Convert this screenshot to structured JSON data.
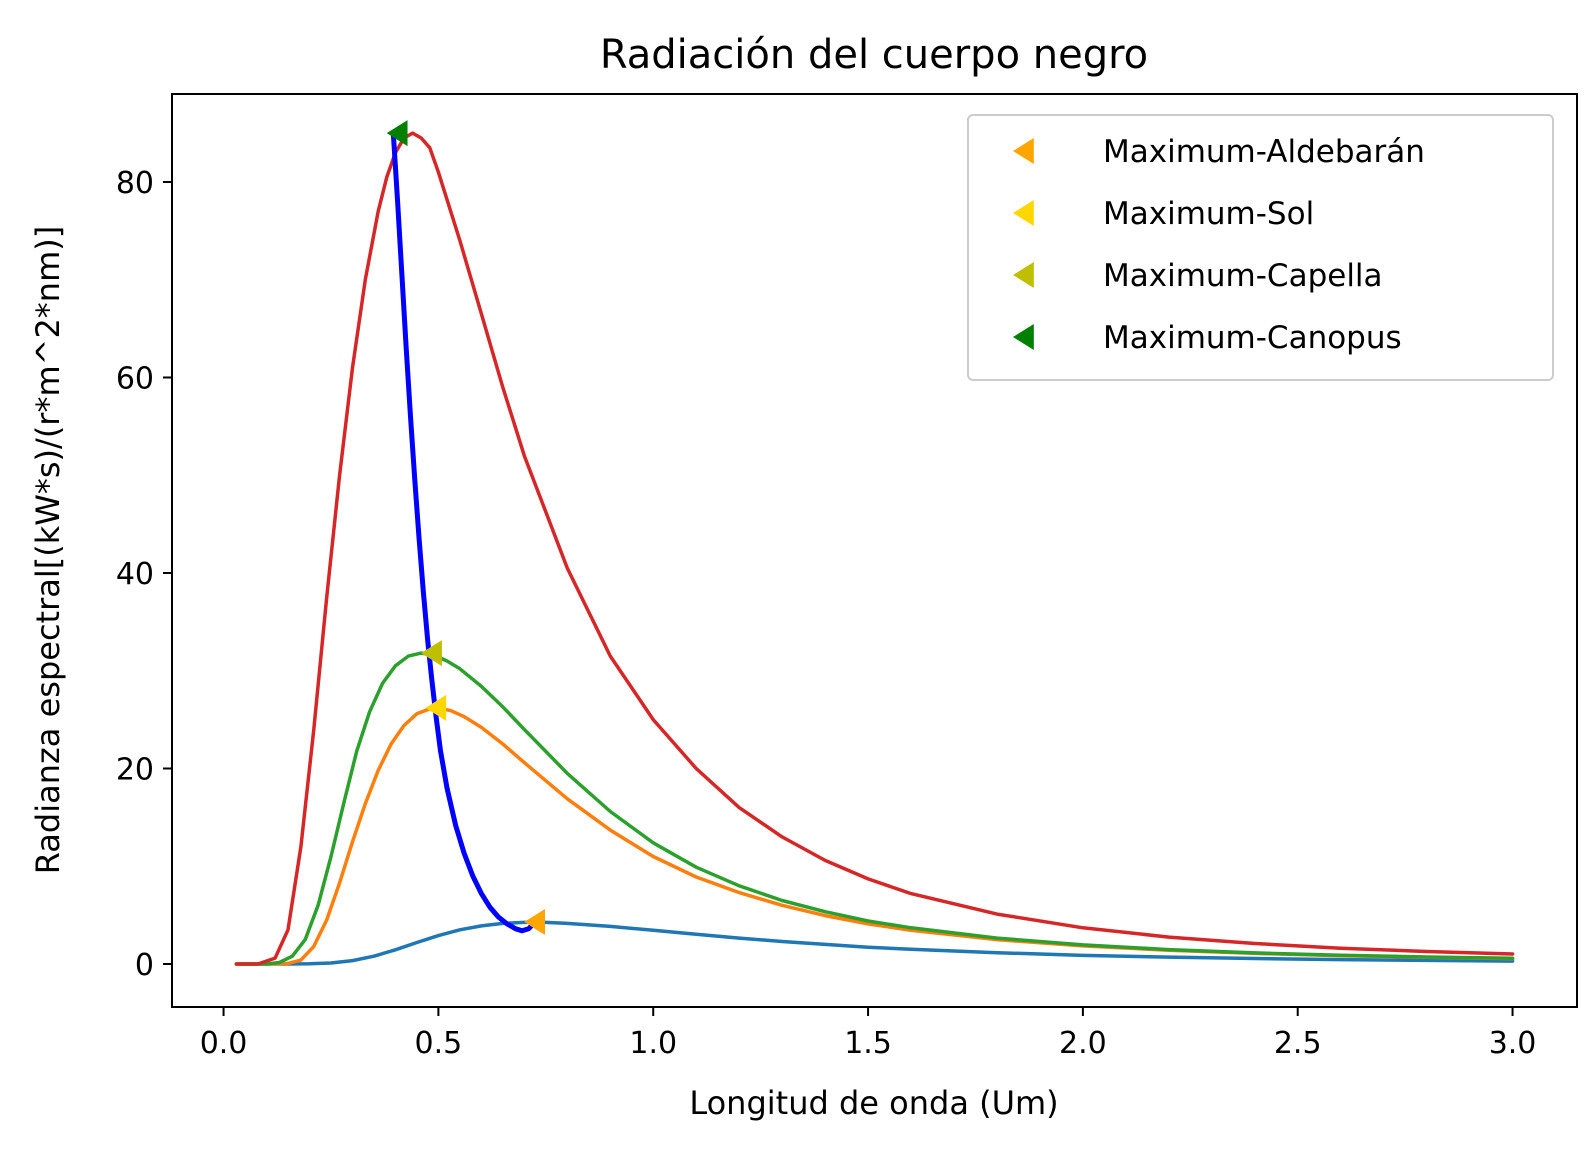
{
  "chart_data": {
    "type": "line",
    "title": "Radiación del cuerpo negro",
    "xlabel": "Longitud de onda (Um)",
    "ylabel": "Radianza espectral[(kW*s)/(r*m^2*nm)]",
    "xlim": [
      -0.12,
      3.15
    ],
    "ylim": [
      -4.4,
      89
    ],
    "xticks": [
      0.0,
      0.5,
      1.0,
      1.5,
      2.0,
      2.5,
      3.0
    ],
    "xtick_labels": [
      "0.0",
      "0.5",
      "1.0",
      "1.5",
      "2.0",
      "2.5",
      "3.0"
    ],
    "yticks": [
      0,
      20,
      40,
      60,
      80
    ],
    "ytick_labels": [
      "0",
      "20",
      "40",
      "60",
      "80"
    ],
    "grid": false,
    "legend_position": "top-right",
    "series": [
      {
        "color": "#1f77b4",
        "points": [
          [
            0.03,
            0.0
          ],
          [
            0.15,
            0.0
          ],
          [
            0.2,
            0.02
          ],
          [
            0.25,
            0.1
          ],
          [
            0.3,
            0.35
          ],
          [
            0.35,
            0.8
          ],
          [
            0.4,
            1.45
          ],
          [
            0.45,
            2.2
          ],
          [
            0.5,
            2.9
          ],
          [
            0.55,
            3.5
          ],
          [
            0.6,
            3.9
          ],
          [
            0.65,
            4.15
          ],
          [
            0.7,
            4.25
          ],
          [
            0.75,
            4.25
          ],
          [
            0.8,
            4.15
          ],
          [
            0.9,
            3.85
          ],
          [
            1.0,
            3.45
          ],
          [
            1.1,
            3.05
          ],
          [
            1.2,
            2.65
          ],
          [
            1.3,
            2.3
          ],
          [
            1.4,
            2.0
          ],
          [
            1.5,
            1.72
          ],
          [
            1.6,
            1.5
          ],
          [
            1.8,
            1.15
          ],
          [
            2.0,
            0.88
          ],
          [
            2.2,
            0.7
          ],
          [
            2.4,
            0.56
          ],
          [
            2.6,
            0.45
          ],
          [
            2.8,
            0.37
          ],
          [
            3.0,
            0.3
          ]
        ]
      },
      {
        "color": "#ff7f0e",
        "points": [
          [
            0.03,
            0.0
          ],
          [
            0.1,
            0.0
          ],
          [
            0.15,
            0.05
          ],
          [
            0.18,
            0.4
          ],
          [
            0.21,
            1.8
          ],
          [
            0.24,
            4.5
          ],
          [
            0.27,
            8.3
          ],
          [
            0.3,
            12.5
          ],
          [
            0.33,
            16.4
          ],
          [
            0.36,
            19.8
          ],
          [
            0.39,
            22.5
          ],
          [
            0.42,
            24.4
          ],
          [
            0.45,
            25.6
          ],
          [
            0.48,
            26.1
          ],
          [
            0.5,
            26.2
          ],
          [
            0.53,
            25.9
          ],
          [
            0.56,
            25.3
          ],
          [
            0.6,
            24.2
          ],
          [
            0.65,
            22.5
          ],
          [
            0.7,
            20.6
          ],
          [
            0.8,
            16.9
          ],
          [
            0.9,
            13.7
          ],
          [
            1.0,
            11.0
          ],
          [
            1.1,
            8.9
          ],
          [
            1.2,
            7.3
          ],
          [
            1.3,
            6.0
          ],
          [
            1.4,
            4.95
          ],
          [
            1.5,
            4.1
          ],
          [
            1.6,
            3.45
          ],
          [
            1.8,
            2.5
          ],
          [
            2.0,
            1.85
          ],
          [
            2.2,
            1.4
          ],
          [
            2.4,
            1.08
          ],
          [
            2.6,
            0.85
          ],
          [
            2.8,
            0.68
          ],
          [
            3.0,
            0.55
          ]
        ]
      },
      {
        "color": "#2ca02c",
        "points": [
          [
            0.03,
            0.0
          ],
          [
            0.1,
            0.0
          ],
          [
            0.13,
            0.15
          ],
          [
            0.16,
            0.8
          ],
          [
            0.19,
            2.5
          ],
          [
            0.22,
            6.0
          ],
          [
            0.25,
            11.0
          ],
          [
            0.28,
            16.5
          ],
          [
            0.31,
            21.8
          ],
          [
            0.34,
            25.8
          ],
          [
            0.37,
            28.7
          ],
          [
            0.4,
            30.5
          ],
          [
            0.43,
            31.5
          ],
          [
            0.46,
            31.8
          ],
          [
            0.49,
            31.6
          ],
          [
            0.52,
            31.0
          ],
          [
            0.55,
            30.2
          ],
          [
            0.6,
            28.4
          ],
          [
            0.65,
            26.3
          ],
          [
            0.7,
            24.0
          ],
          [
            0.8,
            19.5
          ],
          [
            0.9,
            15.6
          ],
          [
            1.0,
            12.4
          ],
          [
            1.1,
            9.9
          ],
          [
            1.2,
            8.0
          ],
          [
            1.3,
            6.5
          ],
          [
            1.4,
            5.35
          ],
          [
            1.5,
            4.4
          ],
          [
            1.6,
            3.7
          ],
          [
            1.8,
            2.65
          ],
          [
            2.0,
            1.95
          ],
          [
            2.2,
            1.47
          ],
          [
            2.4,
            1.13
          ],
          [
            2.6,
            0.89
          ],
          [
            2.8,
            0.71
          ],
          [
            3.0,
            0.58
          ]
        ]
      },
      {
        "color": "#d62728",
        "points": [
          [
            0.03,
            0.0
          ],
          [
            0.08,
            0.0
          ],
          [
            0.12,
            0.6
          ],
          [
            0.15,
            3.5
          ],
          [
            0.18,
            12.0
          ],
          [
            0.21,
            24.0
          ],
          [
            0.24,
            37.5
          ],
          [
            0.27,
            50.0
          ],
          [
            0.3,
            61.0
          ],
          [
            0.33,
            70.0
          ],
          [
            0.36,
            77.0
          ],
          [
            0.38,
            80.5
          ],
          [
            0.4,
            83.0
          ],
          [
            0.42,
            84.5
          ],
          [
            0.44,
            85.0
          ],
          [
            0.46,
            84.5
          ],
          [
            0.48,
            83.5
          ],
          [
            0.5,
            81.0
          ],
          [
            0.55,
            74.0
          ],
          [
            0.6,
            66.5
          ],
          [
            0.65,
            59.0
          ],
          [
            0.7,
            52.0
          ],
          [
            0.8,
            40.5
          ],
          [
            0.9,
            31.5
          ],
          [
            1.0,
            25.0
          ],
          [
            1.1,
            20.0
          ],
          [
            1.2,
            16.0
          ],
          [
            1.3,
            13.0
          ],
          [
            1.4,
            10.6
          ],
          [
            1.5,
            8.7
          ],
          [
            1.6,
            7.2
          ],
          [
            1.8,
            5.1
          ],
          [
            2.0,
            3.7
          ],
          [
            2.2,
            2.75
          ],
          [
            2.4,
            2.1
          ],
          [
            2.6,
            1.62
          ],
          [
            2.8,
            1.28
          ],
          [
            3.0,
            1.02
          ]
        ]
      },
      {
        "color": "#0000ff",
        "points": [
          [
            0.395,
            85.0
          ],
          [
            0.405,
            78.0
          ],
          [
            0.415,
            70.5
          ],
          [
            0.425,
            63.0
          ],
          [
            0.435,
            56.0
          ],
          [
            0.445,
            49.5
          ],
          [
            0.455,
            43.5
          ],
          [
            0.465,
            38.0
          ],
          [
            0.475,
            33.2
          ],
          [
            0.485,
            29.0
          ],
          [
            0.495,
            25.2
          ],
          [
            0.505,
            21.8
          ],
          [
            0.52,
            18.0
          ],
          [
            0.54,
            14.2
          ],
          [
            0.56,
            11.3
          ],
          [
            0.58,
            9.0
          ],
          [
            0.6,
            7.2
          ],
          [
            0.62,
            5.8
          ],
          [
            0.64,
            4.8
          ],
          [
            0.66,
            4.1
          ],
          [
            0.68,
            3.6
          ],
          [
            0.695,
            3.4
          ],
          [
            0.71,
            3.6
          ],
          [
            0.725,
            4.3
          ]
        ]
      }
    ],
    "scatter": [
      {
        "name": "Maximum-Aldebarán",
        "color": "#ffa500",
        "x": 0.73,
        "y": 4.3
      },
      {
        "name": "Maximum-Sol",
        "color": "#ffd700",
        "x": 0.5,
        "y": 26.2
      },
      {
        "name": "Maximum-Capella",
        "color": "#bfbf00",
        "x": 0.49,
        "y": 31.8
      },
      {
        "name": "Maximum-Canopus",
        "color": "#008000",
        "x": 0.41,
        "y": 85.0
      }
    ]
  }
}
